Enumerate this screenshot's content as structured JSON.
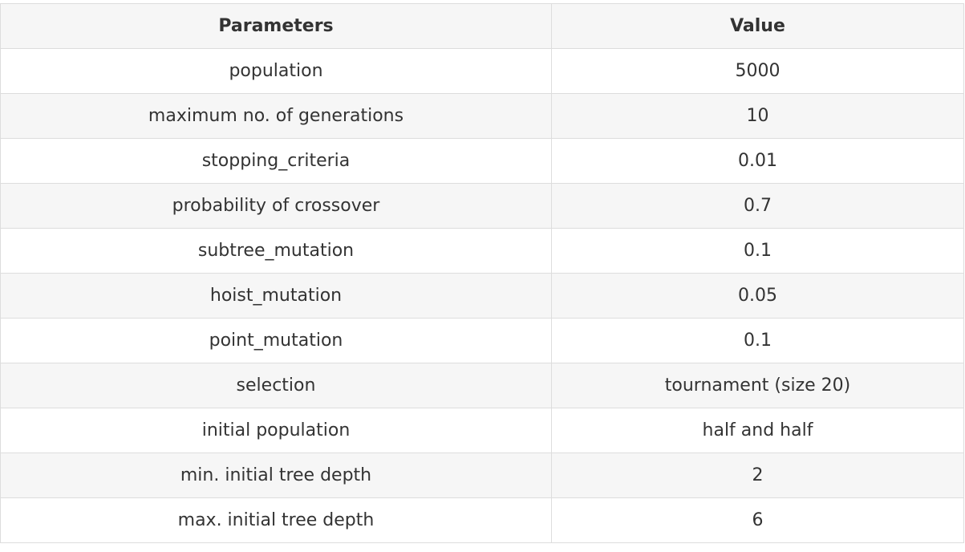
{
  "table": {
    "headers": [
      "Parameters",
      "Value"
    ],
    "rows": [
      [
        "population",
        "5000"
      ],
      [
        "maximum no. of generations",
        "10"
      ],
      [
        "stopping_criteria",
        "0.01"
      ],
      [
        "probability of crossover",
        "0.7"
      ],
      [
        "subtree_mutation",
        "0.1"
      ],
      [
        "hoist_mutation",
        "0.05"
      ],
      [
        "point_mutation",
        "0.1"
      ],
      [
        "selection",
        "tournament (size 20)"
      ],
      [
        "initial population",
        "half and half"
      ],
      [
        "min. initial tree depth",
        "2"
      ],
      [
        "max. initial tree depth",
        "6"
      ]
    ]
  }
}
